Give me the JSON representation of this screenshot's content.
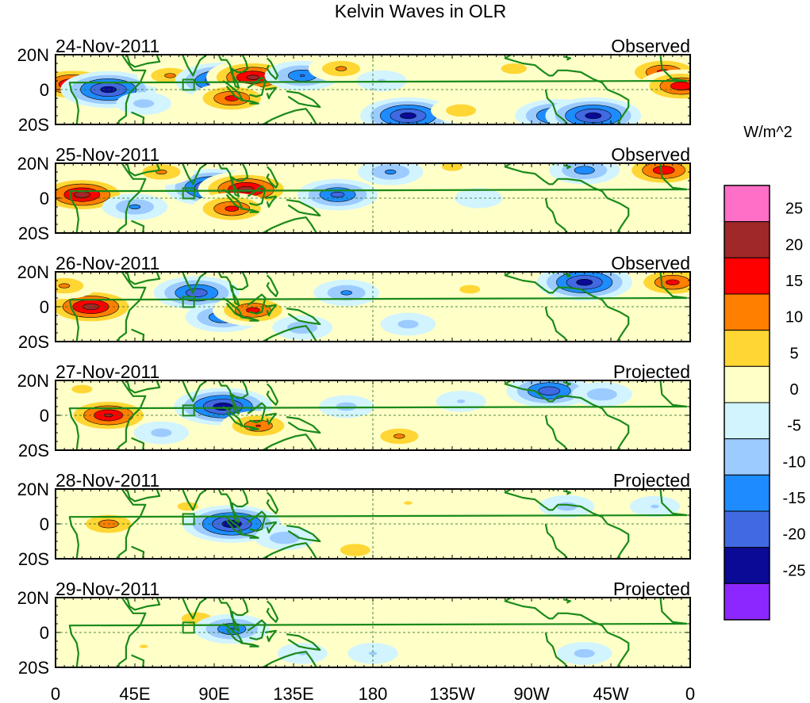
{
  "title": "Kelvin Waves in OLR",
  "colorbar": {
    "units": "W/m^2",
    "levels": [
      "25",
      "20",
      "15",
      "10",
      "5",
      "0",
      "-5",
      "-10",
      "-15",
      "-20",
      "-25"
    ],
    "colors": [
      "#ff6ec7",
      "#a02828",
      "#ff0000",
      "#ff7f00",
      "#ffd633",
      "#ffffc8",
      "#d2f4ff",
      "#9ccbff",
      "#1e8cff",
      "#4169e1",
      "#0a0a96",
      "#8c28ff"
    ]
  },
  "x_axis": {
    "ticks": [
      "0",
      "45E",
      "90E",
      "135E",
      "180",
      "135W",
      "90W",
      "45W",
      "0"
    ]
  },
  "y_axis": {
    "ticks": [
      "20N",
      "0",
      "20S"
    ]
  },
  "coast_color": "#1a8a1a",
  "panels": [
    {
      "date": "24-Nov-2011",
      "label": "Observed"
    },
    {
      "date": "25-Nov-2011",
      "label": "Observed"
    },
    {
      "date": "26-Nov-2011",
      "label": "Observed"
    },
    {
      "date": "27-Nov-2011",
      "label": "Projected"
    },
    {
      "date": "28-Nov-2011",
      "label": "Projected"
    },
    {
      "date": "29-Nov-2011",
      "label": "Projected"
    }
  ],
  "anomalies": [
    [
      {
        "lon": 10,
        "lat": 3,
        "a": 22
      },
      {
        "lon": 30,
        "lat": 0,
        "a": -24
      },
      {
        "lon": 65,
        "lat": 8,
        "a": 12
      },
      {
        "lon": 95,
        "lat": 5,
        "a": -24
      },
      {
        "lon": 112,
        "lat": 7,
        "a": 23
      },
      {
        "lon": 100,
        "lat": -5,
        "a": 18
      },
      {
        "lon": 140,
        "lat": 8,
        "a": -16
      },
      {
        "lon": 162,
        "lat": 12,
        "a": 12
      },
      {
        "lon": 200,
        "lat": -15,
        "a": -24
      },
      {
        "lon": 230,
        "lat": -12,
        "a": 10
      },
      {
        "lon": 260,
        "lat": 12,
        "a": 9
      },
      {
        "lon": 285,
        "lat": -15,
        "a": -20
      },
      {
        "lon": 305,
        "lat": -15,
        "a": -24
      },
      {
        "lon": 345,
        "lat": 10,
        "a": 18
      },
      {
        "lon": 355,
        "lat": 2,
        "a": 20
      },
      {
        "lon": 185,
        "lat": 5,
        "a": -6
      },
      {
        "lon": 50,
        "lat": -8,
        "a": -8
      }
    ],
    [
      {
        "lon": 15,
        "lat": 2,
        "a": 24
      },
      {
        "lon": 45,
        "lat": -5,
        "a": -12
      },
      {
        "lon": 90,
        "lat": 6,
        "a": -25
      },
      {
        "lon": 108,
        "lat": 5,
        "a": 24
      },
      {
        "lon": 100,
        "lat": -6,
        "a": 18
      },
      {
        "lon": 160,
        "lat": 2,
        "a": -18
      },
      {
        "lon": 190,
        "lat": 15,
        "a": -12
      },
      {
        "lon": 225,
        "lat": 18,
        "a": 8
      },
      {
        "lon": 300,
        "lat": 16,
        "a": -14
      },
      {
        "lon": 345,
        "lat": 16,
        "a": 20
      },
      {
        "lon": 240,
        "lat": 0,
        "a": -5
      },
      {
        "lon": 60,
        "lat": 15,
        "a": 12
      }
    ],
    [
      {
        "lon": 20,
        "lat": 0,
        "a": 24
      },
      {
        "lon": 5,
        "lat": 12,
        "a": 12
      },
      {
        "lon": 80,
        "lat": 8,
        "a": -20
      },
      {
        "lon": 95,
        "lat": -6,
        "a": -16
      },
      {
        "lon": 112,
        "lat": -2,
        "a": 18
      },
      {
        "lon": 165,
        "lat": 8,
        "a": -12
      },
      {
        "lon": 235,
        "lat": 10,
        "a": 8
      },
      {
        "lon": 300,
        "lat": 14,
        "a": -24
      },
      {
        "lon": 350,
        "lat": 14,
        "a": 18
      },
      {
        "lon": 200,
        "lat": -10,
        "a": -8
      },
      {
        "lon": 140,
        "lat": -12,
        "a": -10
      }
    ],
    [
      {
        "lon": 30,
        "lat": 0,
        "a": 22
      },
      {
        "lon": 15,
        "lat": 15,
        "a": 8
      },
      {
        "lon": 95,
        "lat": 5,
        "a": -25
      },
      {
        "lon": 115,
        "lat": -6,
        "a": 16
      },
      {
        "lon": 165,
        "lat": 5,
        "a": -8
      },
      {
        "lon": 195,
        "lat": -12,
        "a": 12
      },
      {
        "lon": 280,
        "lat": 14,
        "a": -20
      },
      {
        "lon": 310,
        "lat": 12,
        "a": -10
      },
      {
        "lon": 60,
        "lat": -10,
        "a": -8
      },
      {
        "lon": 230,
        "lat": 8,
        "a": -6
      },
      {
        "lon": 255,
        "lat": -5,
        "a": 4
      }
    ],
    [
      {
        "lon": 30,
        "lat": 0,
        "a": 14
      },
      {
        "lon": 75,
        "lat": 10,
        "a": 8
      },
      {
        "lon": 100,
        "lat": 0,
        "a": -25
      },
      {
        "lon": 130,
        "lat": -8,
        "a": -10
      },
      {
        "lon": 170,
        "lat": -15,
        "a": 10
      },
      {
        "lon": 290,
        "lat": 10,
        "a": -8
      },
      {
        "lon": 340,
        "lat": 10,
        "a": -6
      },
      {
        "lon": 200,
        "lat": 12,
        "a": 6
      }
    ],
    [
      {
        "lon": 80,
        "lat": 8,
        "a": 10
      },
      {
        "lon": 100,
        "lat": 2,
        "a": -16
      },
      {
        "lon": 50,
        "lat": -8,
        "a": 6
      },
      {
        "lon": 140,
        "lat": -12,
        "a": -6
      },
      {
        "lon": 220,
        "lat": 10,
        "a": 5
      },
      {
        "lon": 300,
        "lat": -12,
        "a": -8
      },
      {
        "lon": 180,
        "lat": -12,
        "a": -6
      }
    ]
  ]
}
